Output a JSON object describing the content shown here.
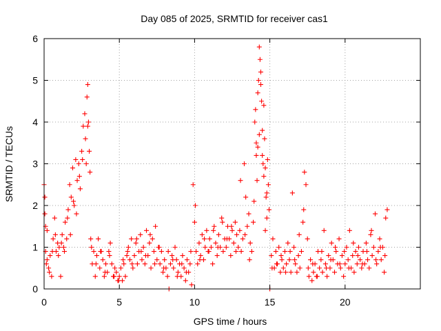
{
  "chart_data": {
    "type": "scatter",
    "title": "Day 085 of 2025, SRMTID for receiver cas1",
    "xlabel": "GPS time / hours",
    "ylabel": "SRMTID / TECUs",
    "xlim": [
      0,
      25
    ],
    "ylim": [
      0,
      6
    ],
    "xticks": [
      0,
      5,
      10,
      15,
      20
    ],
    "yticks": [
      0,
      1,
      2,
      3,
      4,
      5,
      6
    ],
    "grid": true,
    "marker": "+",
    "color": "#ff0000",
    "series": [
      {
        "name": "SRMTID",
        "x": [
          0.0,
          0.05,
          0.1,
          0.15,
          0.2,
          0.3,
          0.4,
          0.5,
          0.6,
          0.7,
          0.8,
          0.9,
          1.0,
          1.1,
          1.2,
          1.3,
          1.4,
          1.5,
          1.6,
          1.7,
          1.8,
          1.9,
          2.0,
          2.1,
          2.2,
          2.3,
          2.4,
          2.5,
          2.6,
          2.7,
          2.8,
          2.85,
          2.9,
          2.95,
          3.0,
          3.05,
          3.1,
          3.2,
          3.3,
          3.4,
          3.5,
          3.6,
          3.7,
          3.8,
          3.9,
          4.0,
          4.1,
          4.2,
          4.3,
          4.4,
          4.5,
          4.6,
          4.7,
          4.8,
          4.9,
          5.0,
          5.1,
          5.2,
          5.3,
          5.4,
          5.5,
          5.6,
          5.7,
          5.8,
          5.9,
          6.0,
          6.1,
          6.2,
          6.3,
          6.4,
          6.5,
          6.6,
          6.7,
          6.8,
          6.9,
          7.0,
          7.1,
          7.2,
          7.3,
          7.4,
          7.5,
          7.6,
          7.7,
          7.8,
          7.9,
          8.0,
          8.1,
          8.2,
          8.3,
          8.4,
          8.5,
          8.6,
          8.7,
          8.8,
          8.9,
          9.0,
          9.1,
          9.2,
          9.3,
          9.4,
          9.5,
          9.6,
          9.7,
          9.8,
          9.9,
          10.0,
          10.1,
          10.2,
          10.3,
          10.4,
          10.5,
          10.6,
          10.7,
          10.8,
          10.9,
          11.0,
          11.1,
          11.2,
          11.3,
          11.4,
          11.5,
          11.6,
          11.7,
          11.8,
          11.9,
          12.0,
          12.1,
          12.2,
          12.3,
          12.4,
          12.5,
          12.6,
          12.7,
          12.8,
          12.9,
          13.0,
          13.1,
          13.2,
          13.3,
          13.4,
          13.5,
          13.6,
          13.7,
          13.8,
          13.9,
          14.0,
          14.05,
          14.1,
          14.15,
          14.2,
          14.25,
          14.3,
          14.35,
          14.4,
          14.45,
          14.5,
          14.55,
          14.6,
          14.65,
          14.7,
          14.75,
          14.8,
          14.85,
          14.9,
          14.95,
          15.0,
          15.1,
          15.2,
          15.3,
          15.4,
          15.5,
          15.6,
          15.7,
          15.8,
          15.9,
          16.0,
          16.1,
          16.2,
          16.3,
          16.4,
          16.5,
          16.6,
          16.7,
          16.8,
          16.9,
          17.0,
          17.1,
          17.2,
          17.3,
          17.4,
          17.5,
          17.6,
          17.7,
          17.8,
          17.9,
          18.0,
          18.1,
          18.2,
          18.3,
          18.4,
          18.5,
          18.6,
          18.7,
          18.8,
          18.9,
          19.0,
          19.1,
          19.2,
          19.3,
          19.4,
          19.5,
          19.6,
          19.7,
          19.8,
          19.9,
          20.0,
          20.1,
          20.2,
          20.3,
          20.4,
          20.5,
          20.6,
          20.7,
          20.8,
          20.9,
          21.0,
          21.1,
          21.2,
          21.3,
          21.4,
          21.5,
          21.6,
          21.7,
          21.8,
          21.9,
          22.0,
          22.1,
          22.2,
          22.3,
          22.4,
          22.5,
          22.6,
          22.7,
          22.8,
          0.05,
          0.1,
          0.2,
          0.35,
          0.55,
          0.75,
          0.95,
          1.15,
          1.35,
          1.55,
          1.75,
          1.95,
          2.15,
          2.35,
          2.55,
          2.75,
          2.9,
          3.15,
          3.45,
          3.75,
          4.05,
          4.35,
          4.65,
          4.95,
          5.25,
          5.55,
          5.85,
          6.15,
          6.45,
          6.75,
          7.05,
          7.35,
          7.65,
          7.95,
          8.25,
          8.55,
          8.85,
          9.15,
          9.45,
          9.75,
          10.05,
          10.35,
          10.65,
          10.95,
          11.25,
          11.55,
          11.85,
          12.15,
          12.45,
          12.75,
          13.05,
          13.35,
          13.65,
          13.95,
          14.1,
          14.2,
          14.3,
          14.4,
          14.5,
          14.6,
          14.7,
          14.8,
          15.15,
          15.45,
          15.75,
          16.05,
          16.35,
          16.65,
          16.95,
          17.25,
          17.55,
          17.85,
          18.15,
          18.45,
          18.75,
          19.05,
          19.35,
          19.65,
          19.95,
          20.25,
          20.55,
          20.85,
          21.15,
          21.45,
          21.75,
          22.05,
          22.35,
          22.65
        ],
        "y": [
          2.5,
          1.8,
          0.9,
          0.6,
          1.4,
          0.5,
          0.8,
          0.3,
          1.2,
          1.7,
          0.9,
          1.1,
          1.0,
          0.3,
          1.3,
          1.0,
          1.6,
          1.2,
          1.9,
          2.5,
          2.2,
          2.9,
          2.0,
          3.1,
          2.6,
          3.0,
          2.4,
          3.3,
          3.9,
          4.2,
          3.0,
          4.6,
          4.9,
          4.0,
          3.3,
          2.8,
          1.2,
          0.6,
          0.9,
          0.3,
          0.8,
          1.2,
          0.5,
          0.9,
          0.7,
          0.3,
          0.6,
          0.4,
          0.9,
          1.1,
          0.6,
          0.3,
          0.5,
          0.4,
          0.2,
          0.3,
          0.5,
          0.2,
          0.6,
          0.3,
          0.8,
          1.0,
          0.7,
          1.2,
          0.5,
          0.8,
          1.1,
          0.6,
          0.9,
          1.3,
          0.7,
          1.0,
          0.6,
          1.4,
          0.8,
          1.1,
          0.5,
          1.2,
          0.9,
          1.5,
          0.7,
          1.0,
          0.6,
          0.9,
          0.4,
          0.7,
          0.5,
          0.3,
          0.0,
          0.6,
          0.8,
          0.5,
          1.0,
          0.7,
          0.4,
          0.6,
          0.3,
          0.8,
          0.5,
          0.2,
          0.7,
          0.4,
          0.6,
          0.1,
          2.5,
          1.6,
          0.9,
          0.6,
          1.1,
          0.8,
          1.3,
          0.7,
          1.0,
          1.4,
          0.9,
          1.2,
          1.0,
          0.6,
          1.5,
          1.1,
          0.8,
          1.3,
          1.0,
          1.7,
          0.9,
          1.2,
          1.0,
          1.5,
          1.2,
          0.8,
          1.4,
          1.1,
          1.6,
          1.3,
          1.0,
          1.4,
          0.9,
          1.2,
          3.0,
          2.2,
          1.5,
          1.8,
          1.1,
          0.9,
          1.6,
          4.0,
          4.3,
          3.2,
          2.6,
          3.4,
          5.0,
          5.8,
          5.5,
          4.9,
          4.5,
          3.8,
          3.0,
          4.4,
          3.6,
          2.9,
          2.2,
          1.7,
          3.1,
          2.5,
          1.9,
          0.0,
          0.8,
          1.2,
          0.5,
          0.9,
          0.6,
          1.0,
          0.4,
          0.7,
          0.5,
          0.9,
          0.6,
          1.1,
          0.7,
          0.4,
          2.3,
          1.0,
          0.6,
          0.4,
          0.8,
          0.5,
          0.9,
          1.6,
          2.8,
          2.5,
          1.2,
          0.3,
          0.7,
          0.2,
          0.4,
          0.6,
          0.3,
          0.9,
          0.5,
          0.7,
          0.4,
          1.4,
          0.6,
          0.3,
          0.8,
          0.5,
          1.1,
          0.7,
          0.4,
          0.9,
          0.6,
          1.2,
          0.5,
          0.8,
          0.3,
          0.6,
          1.0,
          0.7,
          1.4,
          0.5,
          0.8,
          0.4,
          0.9,
          0.6,
          1.0,
          0.7,
          0.5,
          0.9,
          0.6,
          1.1,
          0.7,
          0.5,
          1.3,
          0.8,
          1.0,
          1.8,
          0.6,
          0.9,
          1.2,
          0.7,
          1.0,
          0.4,
          1.7,
          1.9,
          2.2,
          1.5,
          0.7,
          0.4,
          0.9,
          1.3,
          0.8,
          1.1,
          0.9,
          1.7,
          1.3,
          2.1,
          1.8,
          2.7,
          3.1,
          3.6,
          3.9,
          1.0,
          0.6,
          0.9,
          0.4,
          0.8,
          0.3,
          0.2,
          0.7,
          0.9,
          0.6,
          1.2,
          0.9,
          0.8,
          1.3,
          0.6,
          1.0,
          0.5,
          0.9,
          0.7,
          0.3,
          0.6,
          0.4,
          0.9,
          2.0,
          0.7,
          1.2,
          0.9,
          1.4,
          1.0,
          1.6,
          1.2,
          1.5,
          0.9,
          2.6,
          1.3,
          0.7,
          2.1,
          3.5,
          4.7,
          3.7,
          5.2,
          3.2,
          2.7,
          1.4,
          2.3,
          0.5,
          0.6,
          0.8,
          0.4,
          0.9,
          0.7,
          1.3,
          1.9,
          0.5,
          0.6,
          0.3,
          0.9,
          0.5,
          0.7,
          1.0,
          0.6,
          0.9,
          0.5,
          1.1,
          0.8,
          0.6,
          0.9,
          1.4,
          0.7,
          1.0,
          0.8
        ]
      }
    ]
  }
}
